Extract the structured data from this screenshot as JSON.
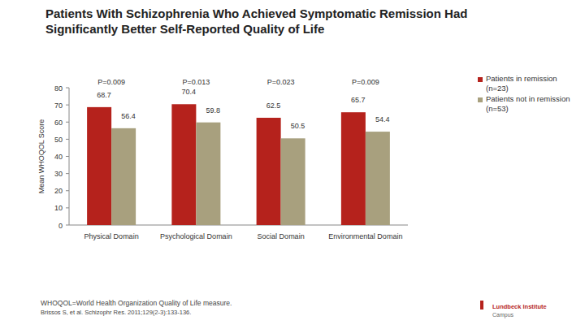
{
  "chart_data": {
    "type": "bar",
    "title": "Patients With Schizophrenia Who Achieved Symptomatic Remission Had Significantly Better Self-Reported Quality of Life",
    "y_label": "Mean WHOQOL Score",
    "categories": [
      "Physical Domain",
      "Psychological Domain",
      "Social Domain",
      "Environmental Domain"
    ],
    "series": [
      {
        "name": "Patients in remission (n=23)",
        "color": "#b5221c",
        "values": [
          68.7,
          70.4,
          62.5,
          65.7
        ]
      },
      {
        "name": "Patients not in remission (n=53)",
        "color": "#a8a07e",
        "values": [
          56.4,
          59.8,
          50.5,
          54.4
        ]
      }
    ],
    "annotations": [
      "P=0.009",
      "P=0.013",
      "P=0.023",
      "P=0.009"
    ],
    "ylim": [
      0,
      80
    ],
    "yticks": [
      0,
      10,
      20,
      30,
      40,
      50,
      60,
      70,
      80
    ],
    "grid": false,
    "legend": "right",
    "data_labels": true
  },
  "footnotes": [
    "WHOQOL=World Health Organization Quality of Life measure.",
    "Brissos S, et al. Schizophr Res. 2011;129(2-3):133-136."
  ],
  "logo": [
    "Lundbeck Institute",
    "Campus"
  ]
}
